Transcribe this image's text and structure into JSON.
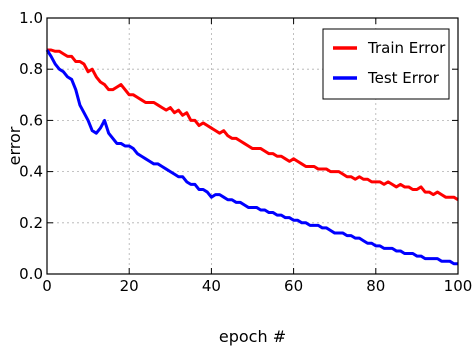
{
  "chart_data": {
    "type": "line",
    "title": "",
    "xlabel": "epoch #",
    "ylabel": "error",
    "xlim": [
      0,
      100
    ],
    "ylim": [
      0.0,
      1.0
    ],
    "x_ticks": [
      "0",
      "20",
      "40",
      "60",
      "80",
      "100"
    ],
    "y_ticks": [
      "0.0",
      "0.2",
      "0.4",
      "0.6",
      "0.8",
      "1.0"
    ],
    "grid": true,
    "legend_position": "top-right",
    "x": [
      0,
      1,
      2,
      3,
      4,
      5,
      6,
      7,
      8,
      9,
      10,
      11,
      12,
      13,
      14,
      15,
      16,
      17,
      18,
      19,
      20,
      21,
      22,
      23,
      24,
      25,
      26,
      27,
      28,
      29,
      30,
      31,
      32,
      33,
      34,
      35,
      36,
      37,
      38,
      39,
      40,
      41,
      42,
      43,
      44,
      45,
      46,
      47,
      48,
      49,
      50,
      51,
      52,
      53,
      54,
      55,
      56,
      57,
      58,
      59,
      60,
      61,
      62,
      63,
      64,
      65,
      66,
      67,
      68,
      69,
      70,
      71,
      72,
      73,
      74,
      75,
      76,
      77,
      78,
      79,
      80,
      81,
      82,
      83,
      84,
      85,
      86,
      87,
      88,
      89,
      90,
      91,
      92,
      93,
      94,
      95,
      96,
      97,
      98,
      99,
      100
    ],
    "series": [
      {
        "name": "Train Error",
        "color": "#ff0000",
        "values": [
          0.875,
          0.875,
          0.87,
          0.87,
          0.86,
          0.85,
          0.85,
          0.83,
          0.83,
          0.82,
          0.79,
          0.8,
          0.77,
          0.75,
          0.74,
          0.72,
          0.72,
          0.73,
          0.74,
          0.72,
          0.7,
          0.7,
          0.69,
          0.68,
          0.67,
          0.67,
          0.67,
          0.66,
          0.65,
          0.64,
          0.65,
          0.63,
          0.64,
          0.62,
          0.63,
          0.6,
          0.6,
          0.58,
          0.59,
          0.58,
          0.57,
          0.56,
          0.55,
          0.56,
          0.54,
          0.53,
          0.53,
          0.52,
          0.51,
          0.5,
          0.49,
          0.49,
          0.49,
          0.48,
          0.47,
          0.47,
          0.46,
          0.46,
          0.45,
          0.44,
          0.45,
          0.44,
          0.43,
          0.42,
          0.42,
          0.42,
          0.41,
          0.41,
          0.41,
          0.4,
          0.4,
          0.4,
          0.39,
          0.38,
          0.38,
          0.37,
          0.38,
          0.37,
          0.37,
          0.36,
          0.36,
          0.36,
          0.35,
          0.36,
          0.35,
          0.34,
          0.35,
          0.34,
          0.34,
          0.33,
          0.33,
          0.34,
          0.32,
          0.32,
          0.31,
          0.32,
          0.31,
          0.3,
          0.3,
          0.3,
          0.29
        ]
      },
      {
        "name": "Test Error",
        "color": "#0000ff",
        "values": [
          0.875,
          0.85,
          0.82,
          0.8,
          0.79,
          0.77,
          0.76,
          0.72,
          0.66,
          0.63,
          0.6,
          0.56,
          0.55,
          0.57,
          0.6,
          0.55,
          0.53,
          0.51,
          0.51,
          0.5,
          0.5,
          0.49,
          0.47,
          0.46,
          0.45,
          0.44,
          0.43,
          0.43,
          0.42,
          0.41,
          0.4,
          0.39,
          0.38,
          0.38,
          0.36,
          0.35,
          0.35,
          0.33,
          0.33,
          0.32,
          0.3,
          0.31,
          0.31,
          0.3,
          0.29,
          0.29,
          0.28,
          0.28,
          0.27,
          0.26,
          0.26,
          0.26,
          0.25,
          0.25,
          0.24,
          0.24,
          0.23,
          0.23,
          0.22,
          0.22,
          0.21,
          0.21,
          0.2,
          0.2,
          0.19,
          0.19,
          0.19,
          0.18,
          0.18,
          0.17,
          0.16,
          0.16,
          0.16,
          0.15,
          0.15,
          0.14,
          0.14,
          0.13,
          0.12,
          0.12,
          0.11,
          0.11,
          0.1,
          0.1,
          0.1,
          0.09,
          0.09,
          0.08,
          0.08,
          0.08,
          0.07,
          0.07,
          0.06,
          0.06,
          0.06,
          0.06,
          0.05,
          0.05,
          0.05,
          0.04,
          0.04
        ]
      }
    ]
  }
}
